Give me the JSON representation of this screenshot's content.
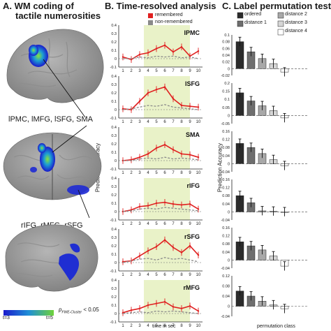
{
  "panels": {
    "a": {
      "title_line1": "A.  WM coding of",
      "title_line2": "tactile numerosities",
      "label_top": "lPMC, lMFG, lSFG, SMA",
      "label_bottom": "rIFG, rMFG, rSFG",
      "colorbar": {
        "min_label": "t=3",
        "max_label": "t=5",
        "p_label": "p",
        "p_sub": "FWE-Cluster",
        "p_rest": "< 0.05"
      }
    },
    "b": {
      "title": "B.  Time-resolved analysis",
      "legend": [
        "remembered",
        "non-remembered"
      ],
      "xlabel": "time in sec",
      "ylabel": "Prediction Accuracy"
    },
    "c": {
      "title": "C.  Label permutation test",
      "legend": [
        "ordered",
        "distance 1",
        "distance 2",
        "distance 3",
        "distance 4"
      ],
      "xlabel": "permutation class",
      "ylabel": "Prediction Accuracy"
    }
  },
  "colors": {
    "remembered": "#e02020",
    "non_remembered": "#8a8a8a",
    "highlight": "#e9f2c8",
    "ordered": "#2b2b2b",
    "distance1": "#6e6e6e",
    "distance2": "#a8a8a8",
    "distance3": "#d6d6d6",
    "distance4": "#ffffff"
  },
  "chart_data": [
    {
      "type": "line",
      "region": "lPMC",
      "x": [
        1,
        2,
        3,
        4,
        5,
        6,
        7,
        8,
        9,
        10
      ],
      "ylim": [
        -0.1,
        0.4
      ],
      "yticks": [
        "0.4",
        "0.3",
        "0.2",
        "0.1",
        "0",
        "-0.1"
      ],
      "series": [
        {
          "name": "remembered",
          "values": [
            0.02,
            -0.01,
            0.05,
            0.07,
            0.12,
            0.16,
            0.08,
            0.14,
            0.03,
            0.09
          ]
        },
        {
          "name": "non-remembered",
          "values": [
            0.0,
            0.0,
            0.02,
            0.01,
            0.03,
            0.02,
            0.03,
            0.01,
            0.02,
            0.0
          ]
        }
      ]
    },
    {
      "type": "line",
      "region": "lSFG",
      "x": [
        1,
        2,
        3,
        4,
        5,
        6,
        7,
        8,
        9,
        10
      ],
      "ylim": [
        -0.1,
        0.4
      ],
      "yticks": [
        "0.4",
        "0.3",
        "0.2",
        "0.1",
        "0",
        "-0.1"
      ],
      "series": [
        {
          "name": "remembered",
          "values": [
            0.01,
            0.0,
            0.1,
            0.2,
            0.24,
            0.27,
            0.13,
            0.05,
            0.04,
            0.03
          ]
        },
        {
          "name": "non-remembered",
          "values": [
            0.0,
            0.01,
            0.03,
            0.05,
            0.04,
            0.06,
            0.03,
            0.02,
            0.01,
            0.0
          ]
        }
      ]
    },
    {
      "type": "line",
      "region": "SMA",
      "x": [
        1,
        2,
        3,
        4,
        5,
        6,
        7,
        8,
        9,
        10
      ],
      "ylim": [
        -0.1,
        0.4
      ],
      "yticks": [
        "0.4",
        "0.3",
        "0.2",
        "0.1",
        "0",
        "-0.1"
      ],
      "series": [
        {
          "name": "remembered",
          "values": [
            0.0,
            0.01,
            0.04,
            0.08,
            0.15,
            0.19,
            0.13,
            0.08,
            0.07,
            0.04
          ]
        },
        {
          "name": "non-remembered",
          "values": [
            0.0,
            0.0,
            0.02,
            0.03,
            0.02,
            0.04,
            0.02,
            0.03,
            0.02,
            0.01
          ]
        }
      ]
    },
    {
      "type": "line",
      "region": "rIFG",
      "x": [
        1,
        2,
        3,
        4,
        5,
        6,
        7,
        8,
        9,
        10
      ],
      "ylim": [
        -0.1,
        0.4
      ],
      "yticks": [
        "0.4",
        "0.3",
        "0.2",
        "0.1",
        "0",
        "-0.1"
      ],
      "series": [
        {
          "name": "remembered",
          "values": [
            0.0,
            0.02,
            0.06,
            0.07,
            0.1,
            0.11,
            0.09,
            0.08,
            0.09,
            0.03
          ]
        },
        {
          "name": "non-remembered",
          "values": [
            0.0,
            0.01,
            0.03,
            0.04,
            0.03,
            0.05,
            0.04,
            0.03,
            0.02,
            0.01
          ]
        }
      ]
    },
    {
      "type": "line",
      "region": "rSFG",
      "x": [
        1,
        2,
        3,
        4,
        5,
        6,
        7,
        8,
        9,
        10
      ],
      "ylim": [
        -0.1,
        0.4
      ],
      "yticks": [
        "0.4",
        "0.3",
        "0.2",
        "0.1",
        "0",
        "-0.1"
      ],
      "series": [
        {
          "name": "remembered",
          "values": [
            0.01,
            0.02,
            0.08,
            0.14,
            0.19,
            0.27,
            0.18,
            0.12,
            0.2,
            0.09
          ]
        },
        {
          "name": "non-remembered",
          "values": [
            0.0,
            0.02,
            0.04,
            0.05,
            0.03,
            0.06,
            0.04,
            0.05,
            0.03,
            0.01
          ]
        }
      ]
    },
    {
      "type": "line",
      "region": "rMFG",
      "x": [
        1,
        2,
        3,
        4,
        5,
        6,
        7,
        8,
        9,
        10
      ],
      "ylim": [
        -0.1,
        0.4
      ],
      "yticks": [
        "0.4",
        "0.3",
        "0.2",
        "0.1",
        "0",
        "-0.1"
      ],
      "series": [
        {
          "name": "remembered",
          "values": [
            0.01,
            0.04,
            0.06,
            0.1,
            0.12,
            0.14,
            0.08,
            0.06,
            0.09,
            0.03
          ]
        },
        {
          "name": "non-remembered",
          "values": [
            0.0,
            0.01,
            0.02,
            0.01,
            0.03,
            0.02,
            0.03,
            0.02,
            0.01,
            0.0
          ]
        }
      ]
    },
    {
      "type": "bar",
      "categories": [
        "ordered",
        "distance 1",
        "distance 2",
        "distance 3",
        "distance 4"
      ],
      "values": [
        0.08,
        0.05,
        0.03,
        0.015,
        -0.01
      ],
      "ylim": [
        -0.02,
        0.1
      ],
      "yticks": [
        "0.1",
        "0.08",
        "0.06",
        "0.04",
        "0.02",
        "0",
        "-0.02"
      ]
    },
    {
      "type": "bar",
      "categories": [
        "ordered",
        "distance 1",
        "distance 2",
        "distance 3",
        "distance 4"
      ],
      "values": [
        0.14,
        0.09,
        0.06,
        0.03,
        -0.015
      ],
      "ylim": [
        -0.05,
        0.2
      ],
      "yticks": [
        "0.2",
        "0.15",
        "0.1",
        "0.05",
        "0",
        "-0.05"
      ]
    },
    {
      "type": "bar",
      "categories": [
        "ordered",
        "distance 1",
        "distance 2",
        "distance 3",
        "distance 4"
      ],
      "values": [
        0.1,
        0.08,
        0.05,
        0.02,
        -0.01
      ],
      "ylim": [
        -0.04,
        0.16
      ],
      "yticks": [
        "0.16",
        "0.12",
        "0.08",
        "0.04",
        "0",
        "-0.04"
      ]
    },
    {
      "type": "bar",
      "categories": [
        "ordered",
        "distance 1",
        "distance 2",
        "distance 3",
        "distance 4"
      ],
      "values": [
        0.08,
        0.045,
        0.005,
        0.003,
        0.0
      ],
      "ylim": [
        -0.04,
        0.16
      ],
      "yticks": [
        "0.16",
        "0.12",
        "0.08",
        "0.04",
        "0",
        "-0.04"
      ]
    },
    {
      "type": "bar",
      "categories": [
        "ordered",
        "distance 1",
        "distance 2",
        "distance 3",
        "distance 4"
      ],
      "values": [
        0.09,
        0.07,
        0.05,
        0.02,
        -0.03
      ],
      "ylim": [
        -0.04,
        0.16
      ],
      "yticks": [
        "0.16",
        "0.12",
        "0.08",
        "0.04",
        "0",
        "-0.04"
      ]
    },
    {
      "type": "bar",
      "categories": [
        "ordered",
        "distance 1",
        "distance 2",
        "distance 3",
        "distance 4"
      ],
      "values": [
        0.06,
        0.04,
        0.02,
        0.005,
        -0.01
      ],
      "ylim": [
        -0.04,
        0.12
      ],
      "yticks": [
        "0.12",
        "0.08",
        "0.04",
        "0",
        "-0.04"
      ]
    }
  ]
}
